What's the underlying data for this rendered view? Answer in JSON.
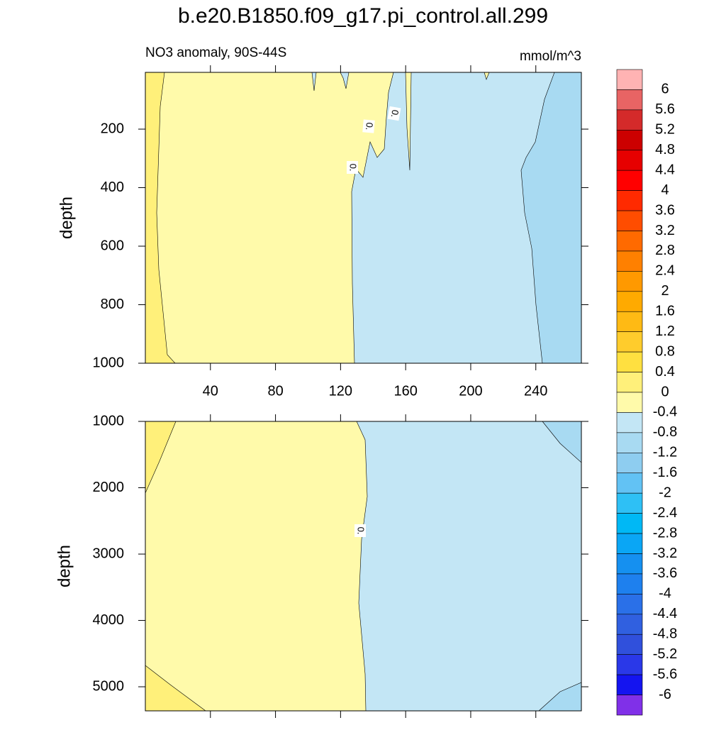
{
  "title": "b.e20.B1850.f09_g17.pi_control.all.299",
  "left_string": "NO3 anomaly, 90S-44S",
  "right_string": "mmol/m^3",
  "contour_label": "0.",
  "colorbar": {
    "labels": [
      6,
      5.6,
      5.2,
      4.8,
      4.4,
      4,
      3.6,
      3.2,
      2.8,
      2.4,
      2,
      1.6,
      1.2,
      0.8,
      0.4,
      0,
      -0.4,
      -0.8,
      -1.2,
      -1.6,
      -2,
      -2.4,
      -2.8,
      -3.2,
      -3.6,
      -4,
      -4.4,
      -4.8,
      -5.2,
      -5.6,
      -6
    ],
    "colors": [
      "#ffb3b3",
      "#e86464",
      "#d42a2a",
      "#cc0000",
      "#e60000",
      "#ff0000",
      "#ff2a00",
      "#ff4d00",
      "#ff6a00",
      "#ff8000",
      "#ff9900",
      "#ffaa00",
      "#ffba14",
      "#ffcc2c",
      "#ffe040",
      "#fff07a",
      "#fffaaa",
      "#c3e6f5",
      "#a8daf2",
      "#8ecdf0",
      "#62c2f4",
      "#2ec0f5",
      "#00b8f5",
      "#0aa6f5",
      "#1590f0",
      "#1e80ee",
      "#2a70e8",
      "#3060e0",
      "#3050dc",
      "#2a38e8",
      "#1414f0",
      "#8030e8"
    ]
  },
  "chart_data": [
    {
      "type": "contour",
      "ylabel": "depth",
      "xlim": [
        0,
        268
      ],
      "xticks": [
        40,
        80,
        120,
        160,
        200,
        240
      ],
      "ylim": [
        6,
        1000
      ],
      "yticks": [
        200,
        400,
        600,
        800,
        1000
      ]
    },
    {
      "type": "contour",
      "ylabel": "depth",
      "xlim": [
        0,
        268
      ],
      "xticks": [
        40,
        80,
        120,
        160,
        200,
        240
      ],
      "ylim": [
        1000,
        5363
      ],
      "yticks": [
        1000,
        2000,
        3000,
        4000,
        5000
      ]
    }
  ]
}
